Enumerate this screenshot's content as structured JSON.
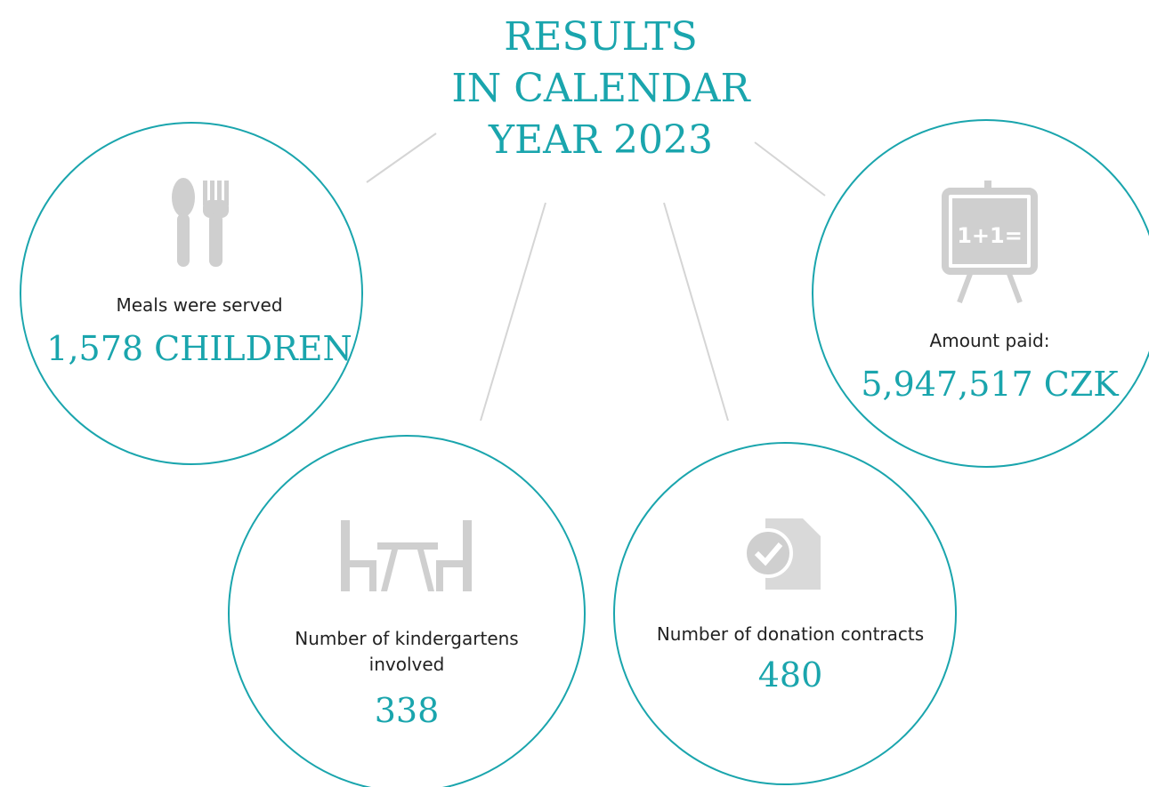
{
  "title": [
    "RESULTS",
    "IN CALENDAR",
    "YEAR 2023"
  ],
  "items": [
    {
      "label": [
        "Meals were served"
      ],
      "value": "1,578 CHILDREN"
    },
    {
      "label": [
        "Amount paid:"
      ],
      "value": "5,947,517 CZK"
    },
    {
      "label": [
        "Number of kindergartens",
        "involved"
      ],
      "value": "338"
    },
    {
      "label": [
        "Number of donation contracts"
      ],
      "value": "480"
    }
  ]
}
